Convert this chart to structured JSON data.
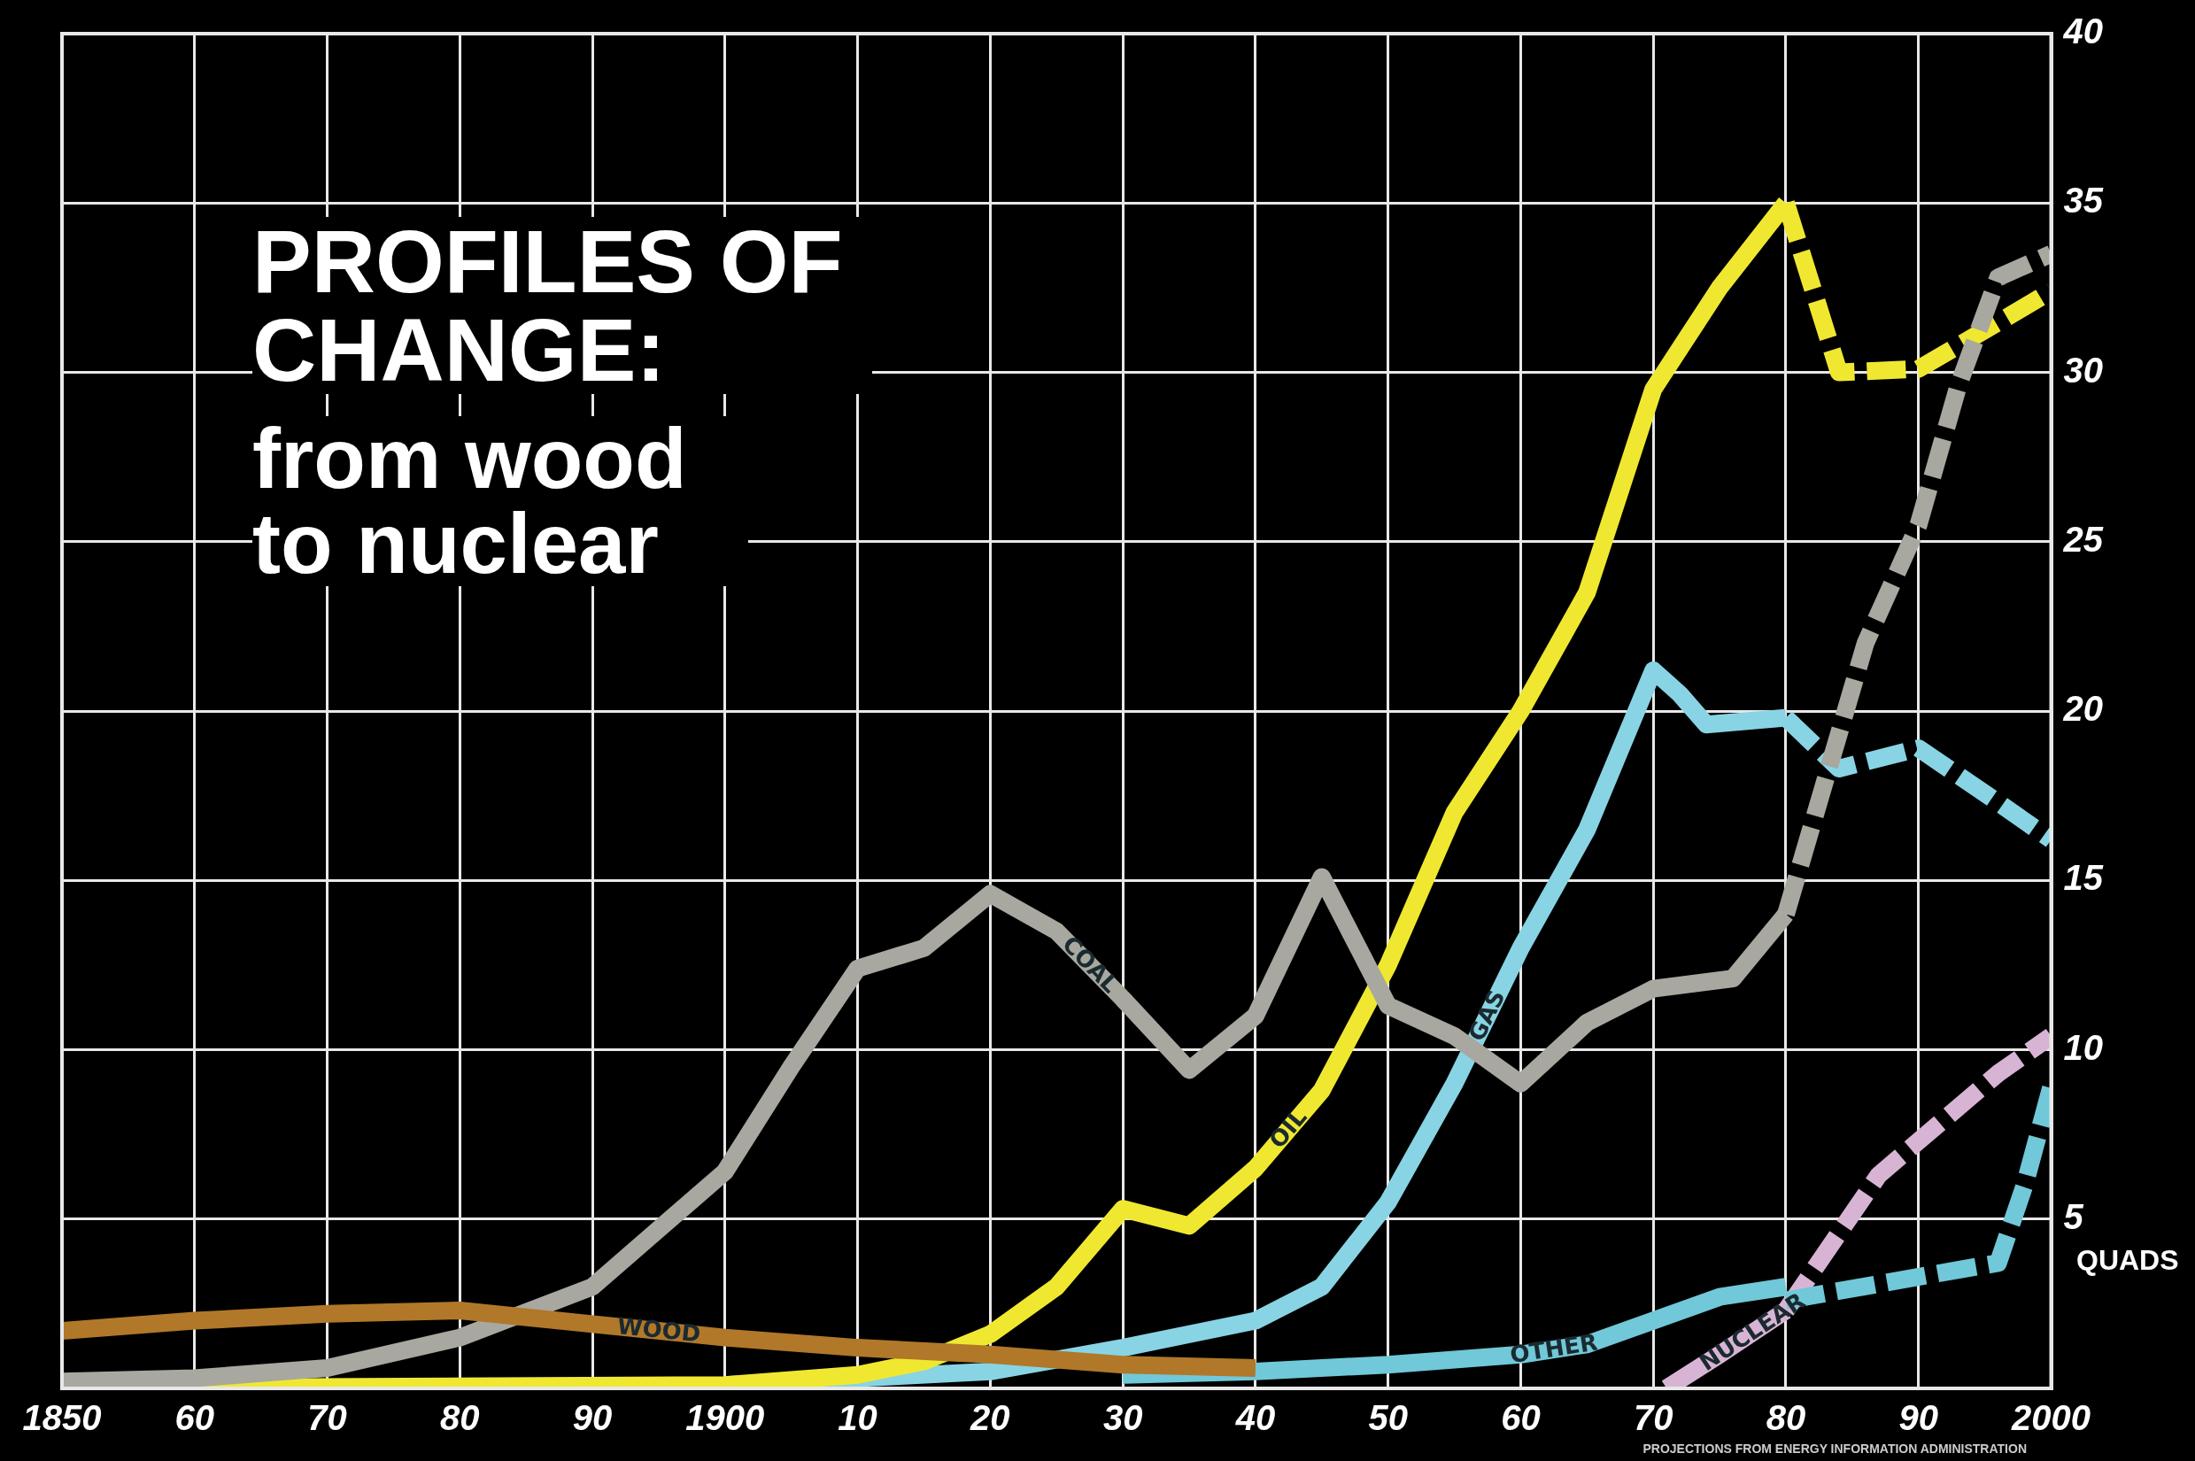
{
  "chart_data": {
    "type": "line",
    "title": "PROFILES OF CHANGE:",
    "subtitle": "from wood to nuclear",
    "ylabel": "QUADS",
    "annotations": [
      "PROJECTIONS FROM ENERGY INFORMATION ADMINISTRATION"
    ],
    "xlim": [
      1850,
      2000
    ],
    "xticks": [
      {
        "value": 1850,
        "label": "1850"
      },
      {
        "value": 1860,
        "label": "60"
      },
      {
        "value": 1870,
        "label": "70"
      },
      {
        "value": 1880,
        "label": "80"
      },
      {
        "value": 1890,
        "label": "90"
      },
      {
        "value": 1900,
        "label": "1900"
      },
      {
        "value": 1910,
        "label": "10"
      },
      {
        "value": 1920,
        "label": "20"
      },
      {
        "value": 1930,
        "label": "30"
      },
      {
        "value": 1940,
        "label": "40"
      },
      {
        "value": 1950,
        "label": "50"
      },
      {
        "value": 1960,
        "label": "60"
      },
      {
        "value": 1970,
        "label": "70"
      },
      {
        "value": 1980,
        "label": "80"
      },
      {
        "value": 1990,
        "label": "90"
      },
      {
        "value": 2000,
        "label": "2000"
      }
    ],
    "ylim": [
      0,
      40
    ],
    "yticks": [
      {
        "value": 0,
        "label": null
      },
      5,
      10,
      15,
      20,
      25,
      30,
      35,
      40
    ],
    "grid": true,
    "legend": false,
    "marker": "none",
    "line_style": "solid",
    "series": [
      {
        "name": "WOOD",
        "color": "#b07828",
        "x": [
          1850,
          1860,
          1870,
          1880,
          1890,
          1900,
          1910,
          1920,
          1930,
          1940
        ],
        "values": [
          1.7,
          2.0,
          2.2,
          2.3,
          1.9,
          1.5,
          1.2,
          1.0,
          0.7,
          0.6
        ]
      },
      {
        "name": "COAL",
        "color": "#a8a8a0",
        "x": [
          1850,
          1860,
          1870,
          1880,
          1890,
          1900,
          1905,
          1910,
          1915,
          1920,
          1925,
          1930,
          1935,
          1940,
          1945,
          1950,
          1955,
          1960,
          1965,
          1970,
          1976,
          1980
        ],
        "values": [
          0.2,
          0.3,
          0.6,
          1.5,
          3.0,
          6.4,
          9.5,
          12.4,
          13.0,
          14.6,
          13.5,
          11.5,
          9.4,
          11.0,
          15.1,
          11.3,
          10.4,
          9.0,
          10.8,
          11.8,
          12.1,
          14.0
        ]
      },
      {
        "name": "OIL",
        "color": "#f0e830",
        "x": [
          1850,
          1900,
          1910,
          1915,
          1920,
          1925,
          1930,
          1935,
          1940,
          1945,
          1950,
          1955,
          1960,
          1965,
          1970,
          1975,
          1980
        ],
        "values": [
          0,
          0.1,
          0.4,
          0.8,
          1.6,
          3.0,
          5.3,
          4.8,
          6.5,
          8.8,
          12.5,
          17.0,
          20.0,
          23.5,
          29.5,
          32.5,
          35.0
        ]
      },
      {
        "name": "GAS",
        "color": "#88d4e4",
        "x": [
          1900,
          1920,
          1930,
          1940,
          1945,
          1950,
          1955,
          1960,
          1965,
          1970,
          1972,
          1974,
          1980
        ],
        "values": [
          0.1,
          0.5,
          1.2,
          2.0,
          3.0,
          5.5,
          9.0,
          13.0,
          16.5,
          21.2,
          20.5,
          19.6,
          19.8
        ]
      },
      {
        "name": "OTHER",
        "color": "#70c8d8",
        "x": [
          1930,
          1940,
          1950,
          1960,
          1965,
          1970,
          1975,
          1980
        ],
        "values": [
          0.4,
          0.5,
          0.7,
          1.0,
          1.3,
          2.0,
          2.7,
          3.0
        ]
      },
      {
        "name": "NUCLEAR",
        "color": "#d8b4d4",
        "x": [
          1971,
          1975,
          1980
        ],
        "values": [
          0,
          1.0,
          2.3
        ]
      },
      {
        "color": "#a8a8a0",
        "line_style": "dashed",
        "x": [
          1980,
          1983,
          1986,
          1990,
          1993,
          1996,
          2000
        ],
        "values": [
          14.0,
          18.0,
          22.0,
          25.5,
          29.6,
          32.8,
          33.5
        ]
      },
      {
        "color": "#f0e830",
        "line_style": "dashed",
        "x": [
          1980,
          1984,
          1990,
          1997,
          2000
        ],
        "values": [
          35.0,
          30.0,
          30.1,
          31.7,
          32.4
        ]
      },
      {
        "color": "#88d4e4",
        "line_style": "dashed",
        "x": [
          1980,
          1984,
          1990,
          1996,
          2000
        ],
        "values": [
          19.8,
          18.3,
          18.9,
          17.3,
          16.2
        ]
      },
      {
        "color": "#70c8d8",
        "line_style": "dashed",
        "x": [
          1980,
          1993,
          1996,
          1998,
          2000
        ],
        "values": [
          2.6,
          3.5,
          3.7,
          6.0,
          8.9
        ]
      },
      {
        "color": "#d8b4d4",
        "line_style": "dashed",
        "x": [
          1980,
          1987,
          1996,
          2000
        ],
        "values": [
          2.3,
          6.3,
          9.3,
          10.4
        ]
      }
    ]
  }
}
